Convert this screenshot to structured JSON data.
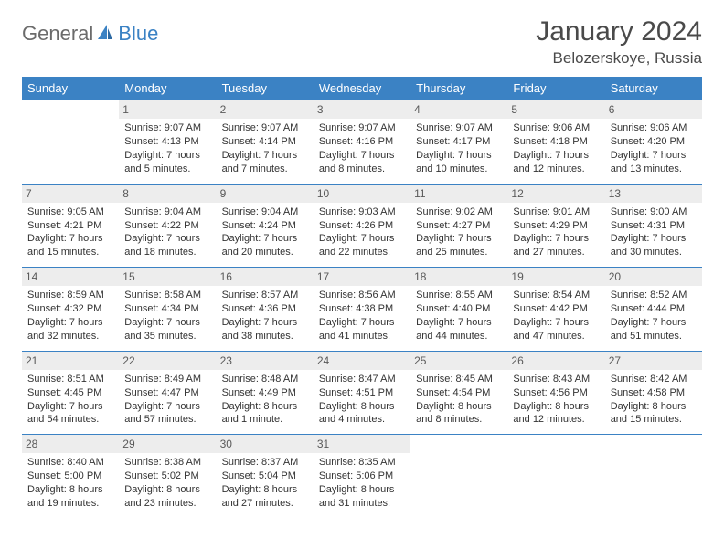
{
  "brand": {
    "part1": "General",
    "part2": "Blue"
  },
  "title": "January 2024",
  "location": "Belozerskoye, Russia",
  "colors": {
    "accent": "#3b82c4",
    "header_text": "#ffffff",
    "daynum_bg": "#ededed",
    "daynum_text": "#5a5a5a",
    "body_text": "#333333",
    "title_text": "#4a4a4a",
    "logo_gray": "#6b6b6b"
  },
  "typography": {
    "title_fontsize": 30,
    "location_fontsize": 17,
    "header_fontsize": 13,
    "cell_fontsize": 11,
    "daynum_fontsize": 12
  },
  "day_headers": [
    "Sunday",
    "Monday",
    "Tuesday",
    "Wednesday",
    "Thursday",
    "Friday",
    "Saturday"
  ],
  "weeks": [
    [
      {
        "n": "",
        "sunrise": "",
        "sunset": "",
        "d1": "",
        "d2": "",
        "empty": true
      },
      {
        "n": "1",
        "sunrise": "Sunrise: 9:07 AM",
        "sunset": "Sunset: 4:13 PM",
        "d1": "Daylight: 7 hours",
        "d2": "and 5 minutes."
      },
      {
        "n": "2",
        "sunrise": "Sunrise: 9:07 AM",
        "sunset": "Sunset: 4:14 PM",
        "d1": "Daylight: 7 hours",
        "d2": "and 7 minutes."
      },
      {
        "n": "3",
        "sunrise": "Sunrise: 9:07 AM",
        "sunset": "Sunset: 4:16 PM",
        "d1": "Daylight: 7 hours",
        "d2": "and 8 minutes."
      },
      {
        "n": "4",
        "sunrise": "Sunrise: 9:07 AM",
        "sunset": "Sunset: 4:17 PM",
        "d1": "Daylight: 7 hours",
        "d2": "and 10 minutes."
      },
      {
        "n": "5",
        "sunrise": "Sunrise: 9:06 AM",
        "sunset": "Sunset: 4:18 PM",
        "d1": "Daylight: 7 hours",
        "d2": "and 12 minutes."
      },
      {
        "n": "6",
        "sunrise": "Sunrise: 9:06 AM",
        "sunset": "Sunset: 4:20 PM",
        "d1": "Daylight: 7 hours",
        "d2": "and 13 minutes."
      }
    ],
    [
      {
        "n": "7",
        "sunrise": "Sunrise: 9:05 AM",
        "sunset": "Sunset: 4:21 PM",
        "d1": "Daylight: 7 hours",
        "d2": "and 15 minutes."
      },
      {
        "n": "8",
        "sunrise": "Sunrise: 9:04 AM",
        "sunset": "Sunset: 4:22 PM",
        "d1": "Daylight: 7 hours",
        "d2": "and 18 minutes."
      },
      {
        "n": "9",
        "sunrise": "Sunrise: 9:04 AM",
        "sunset": "Sunset: 4:24 PM",
        "d1": "Daylight: 7 hours",
        "d2": "and 20 minutes."
      },
      {
        "n": "10",
        "sunrise": "Sunrise: 9:03 AM",
        "sunset": "Sunset: 4:26 PM",
        "d1": "Daylight: 7 hours",
        "d2": "and 22 minutes."
      },
      {
        "n": "11",
        "sunrise": "Sunrise: 9:02 AM",
        "sunset": "Sunset: 4:27 PM",
        "d1": "Daylight: 7 hours",
        "d2": "and 25 minutes."
      },
      {
        "n": "12",
        "sunrise": "Sunrise: 9:01 AM",
        "sunset": "Sunset: 4:29 PM",
        "d1": "Daylight: 7 hours",
        "d2": "and 27 minutes."
      },
      {
        "n": "13",
        "sunrise": "Sunrise: 9:00 AM",
        "sunset": "Sunset: 4:31 PM",
        "d1": "Daylight: 7 hours",
        "d2": "and 30 minutes."
      }
    ],
    [
      {
        "n": "14",
        "sunrise": "Sunrise: 8:59 AM",
        "sunset": "Sunset: 4:32 PM",
        "d1": "Daylight: 7 hours",
        "d2": "and 32 minutes."
      },
      {
        "n": "15",
        "sunrise": "Sunrise: 8:58 AM",
        "sunset": "Sunset: 4:34 PM",
        "d1": "Daylight: 7 hours",
        "d2": "and 35 minutes."
      },
      {
        "n": "16",
        "sunrise": "Sunrise: 8:57 AM",
        "sunset": "Sunset: 4:36 PM",
        "d1": "Daylight: 7 hours",
        "d2": "and 38 minutes."
      },
      {
        "n": "17",
        "sunrise": "Sunrise: 8:56 AM",
        "sunset": "Sunset: 4:38 PM",
        "d1": "Daylight: 7 hours",
        "d2": "and 41 minutes."
      },
      {
        "n": "18",
        "sunrise": "Sunrise: 8:55 AM",
        "sunset": "Sunset: 4:40 PM",
        "d1": "Daylight: 7 hours",
        "d2": "and 44 minutes."
      },
      {
        "n": "19",
        "sunrise": "Sunrise: 8:54 AM",
        "sunset": "Sunset: 4:42 PM",
        "d1": "Daylight: 7 hours",
        "d2": "and 47 minutes."
      },
      {
        "n": "20",
        "sunrise": "Sunrise: 8:52 AM",
        "sunset": "Sunset: 4:44 PM",
        "d1": "Daylight: 7 hours",
        "d2": "and 51 minutes."
      }
    ],
    [
      {
        "n": "21",
        "sunrise": "Sunrise: 8:51 AM",
        "sunset": "Sunset: 4:45 PM",
        "d1": "Daylight: 7 hours",
        "d2": "and 54 minutes."
      },
      {
        "n": "22",
        "sunrise": "Sunrise: 8:49 AM",
        "sunset": "Sunset: 4:47 PM",
        "d1": "Daylight: 7 hours",
        "d2": "and 57 minutes."
      },
      {
        "n": "23",
        "sunrise": "Sunrise: 8:48 AM",
        "sunset": "Sunset: 4:49 PM",
        "d1": "Daylight: 8 hours",
        "d2": "and 1 minute."
      },
      {
        "n": "24",
        "sunrise": "Sunrise: 8:47 AM",
        "sunset": "Sunset: 4:51 PM",
        "d1": "Daylight: 8 hours",
        "d2": "and 4 minutes."
      },
      {
        "n": "25",
        "sunrise": "Sunrise: 8:45 AM",
        "sunset": "Sunset: 4:54 PM",
        "d1": "Daylight: 8 hours",
        "d2": "and 8 minutes."
      },
      {
        "n": "26",
        "sunrise": "Sunrise: 8:43 AM",
        "sunset": "Sunset: 4:56 PM",
        "d1": "Daylight: 8 hours",
        "d2": "and 12 minutes."
      },
      {
        "n": "27",
        "sunrise": "Sunrise: 8:42 AM",
        "sunset": "Sunset: 4:58 PM",
        "d1": "Daylight: 8 hours",
        "d2": "and 15 minutes."
      }
    ],
    [
      {
        "n": "28",
        "sunrise": "Sunrise: 8:40 AM",
        "sunset": "Sunset: 5:00 PM",
        "d1": "Daylight: 8 hours",
        "d2": "and 19 minutes."
      },
      {
        "n": "29",
        "sunrise": "Sunrise: 8:38 AM",
        "sunset": "Sunset: 5:02 PM",
        "d1": "Daylight: 8 hours",
        "d2": "and 23 minutes."
      },
      {
        "n": "30",
        "sunrise": "Sunrise: 8:37 AM",
        "sunset": "Sunset: 5:04 PM",
        "d1": "Daylight: 8 hours",
        "d2": "and 27 minutes."
      },
      {
        "n": "31",
        "sunrise": "Sunrise: 8:35 AM",
        "sunset": "Sunset: 5:06 PM",
        "d1": "Daylight: 8 hours",
        "d2": "and 31 minutes."
      },
      {
        "n": "",
        "sunrise": "",
        "sunset": "",
        "d1": "",
        "d2": "",
        "empty": true
      },
      {
        "n": "",
        "sunrise": "",
        "sunset": "",
        "d1": "",
        "d2": "",
        "empty": true
      },
      {
        "n": "",
        "sunrise": "",
        "sunset": "",
        "d1": "",
        "d2": "",
        "empty": true
      }
    ]
  ]
}
